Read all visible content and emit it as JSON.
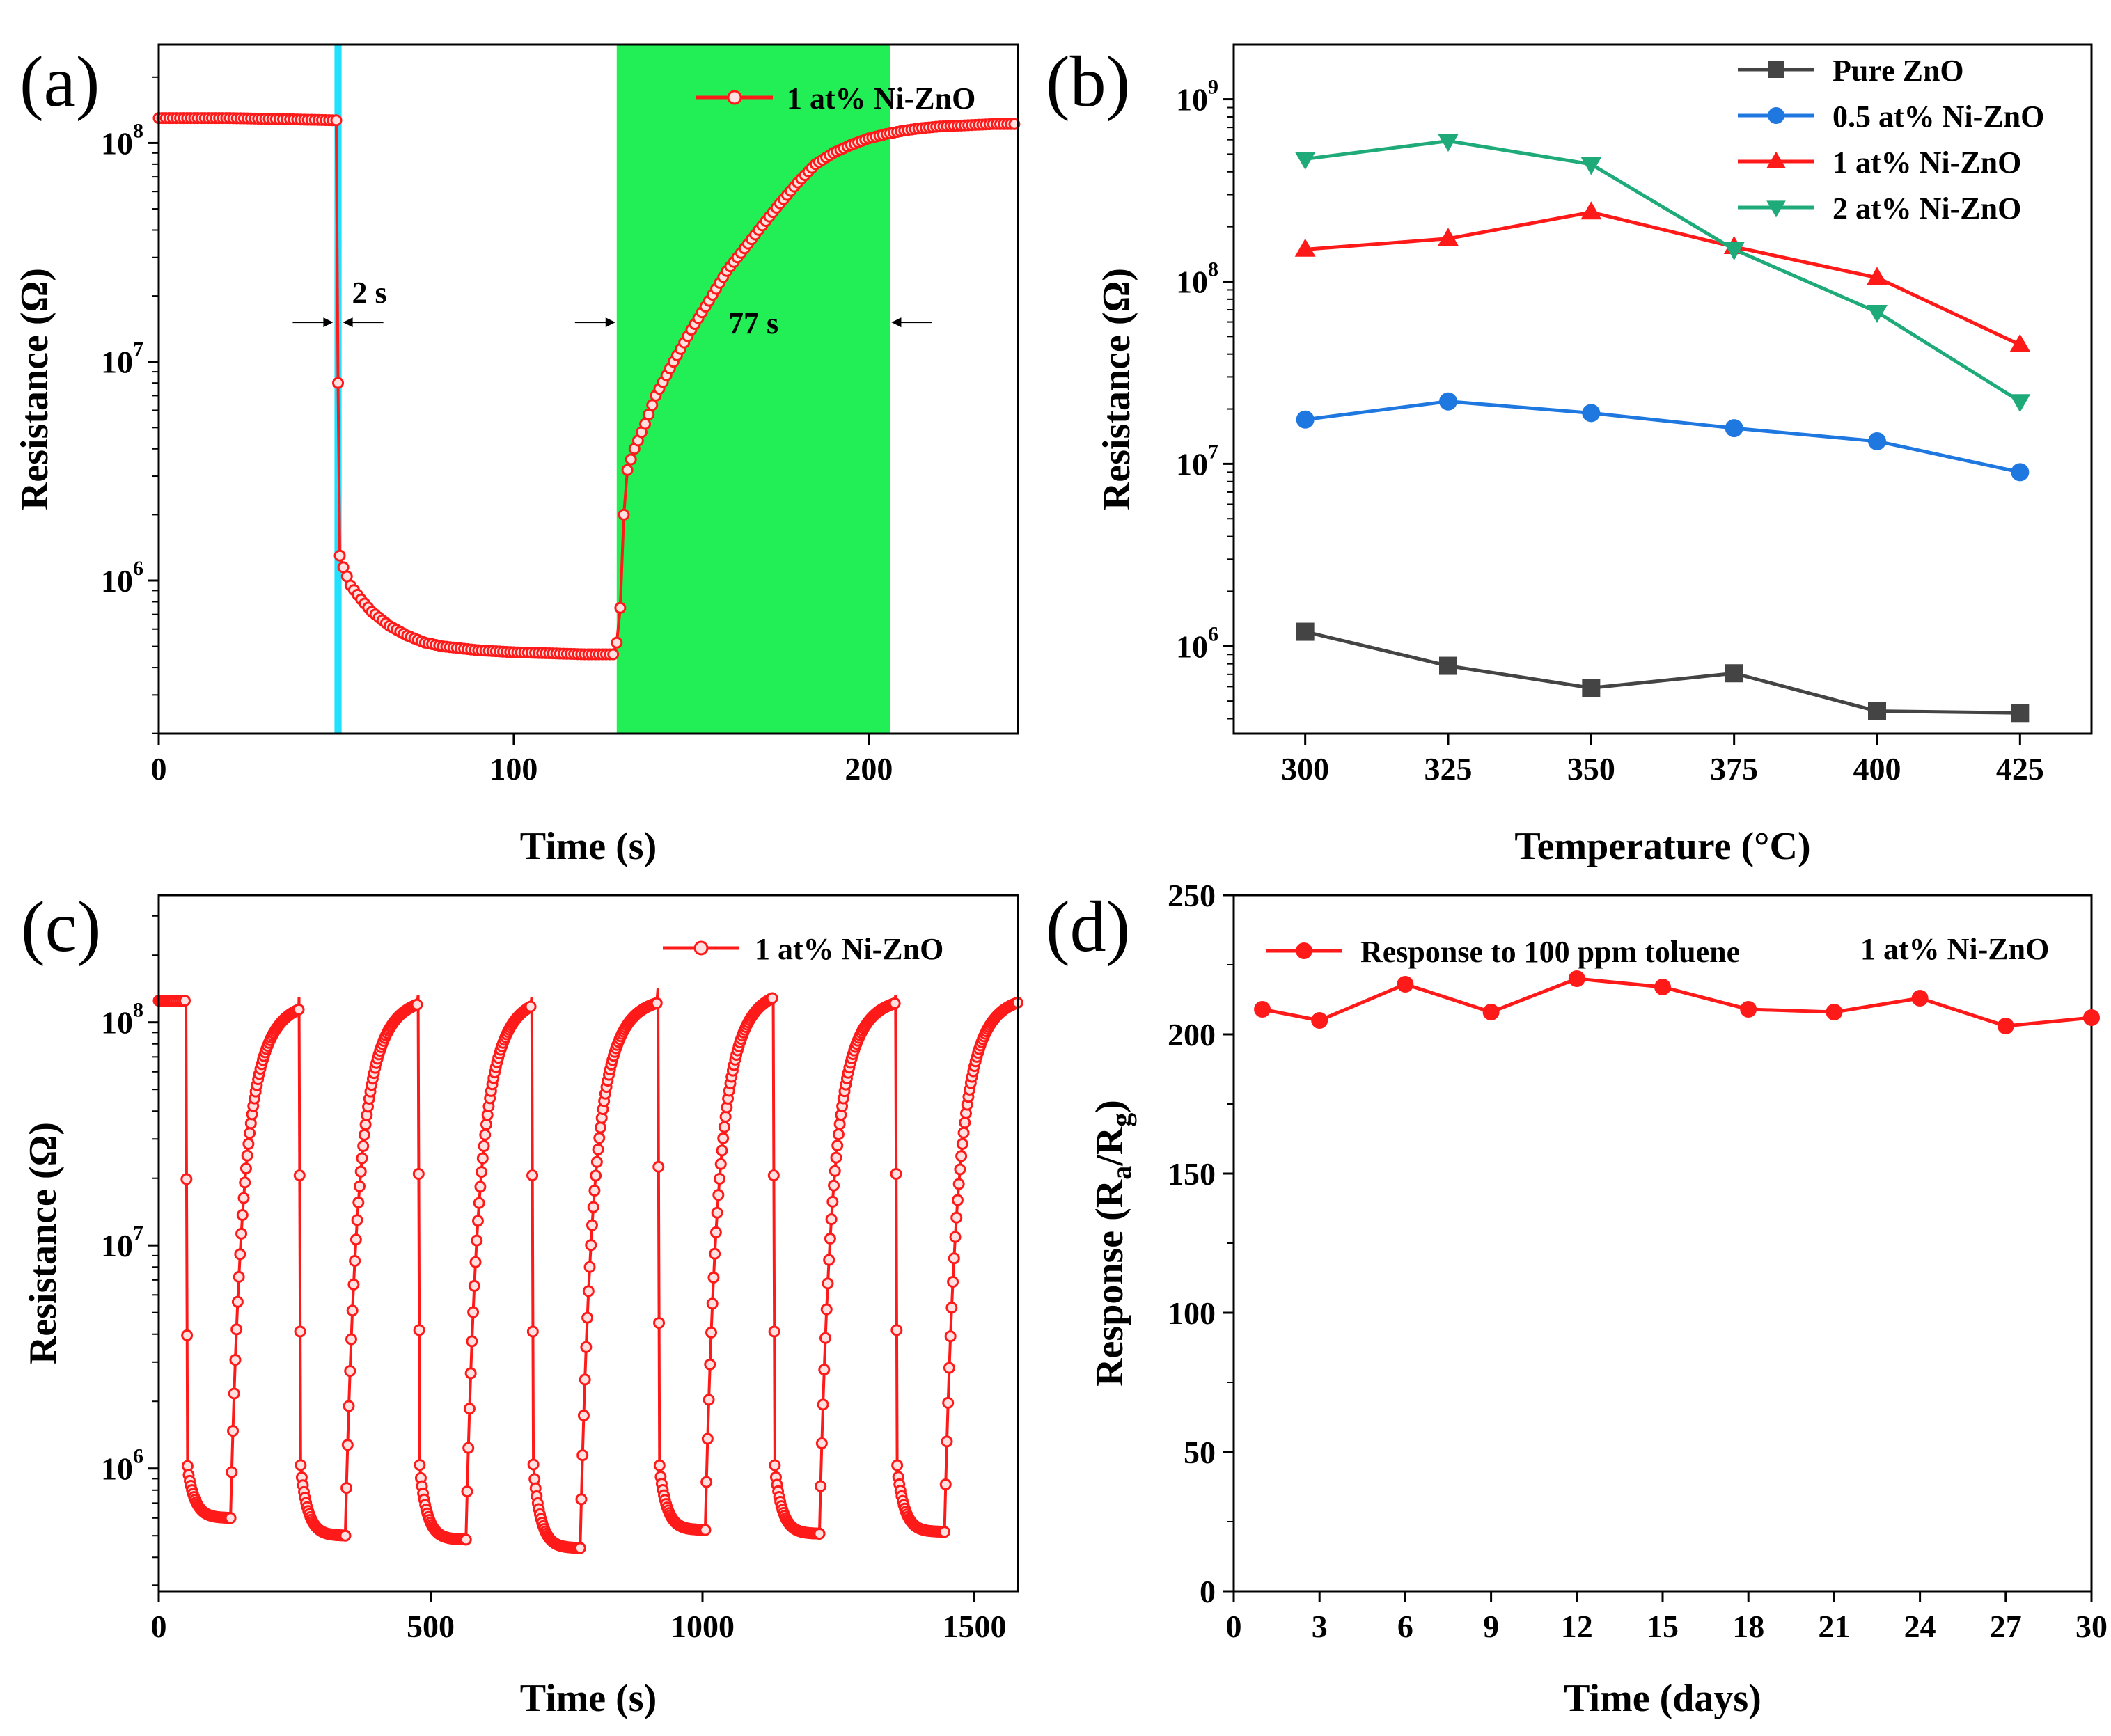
{
  "colors": {
    "red": "#ff1a1a",
    "black_series": "#444444",
    "blue": "#1f77e0",
    "green": "#1faa7a",
    "cyan": "#22e0ff",
    "lime": "#22ee55"
  },
  "chart_data": [
    {
      "id": "a",
      "panel_label": "(a)",
      "type": "line",
      "yscale": "log",
      "xlabel": "Time (s)",
      "ylabel": "Resistance (Ω)",
      "xlim": [
        0,
        242
      ],
      "ylim_log10": [
        5.3,
        8.45
      ],
      "xticks": [
        0,
        100,
        200
      ],
      "xtick_labels": [
        "0",
        "100",
        "200"
      ],
      "yticks_exp": [
        6,
        7,
        8
      ],
      "ytick_base": "10",
      "legend": [
        "1 at% Ni-ZnO"
      ],
      "series": [
        {
          "name": "1 at% Ni-ZnO",
          "color": "#ff1a1a",
          "x": [
            0,
            20,
            40,
            50,
            50.5,
            51,
            52,
            54,
            57,
            60,
            65,
            70,
            75,
            80,
            90,
            100,
            110,
            120,
            128,
            129,
            130,
            131,
            132,
            134,
            137,
            140,
            145,
            150,
            155,
            160,
            165,
            170,
            175,
            180,
            185,
            190,
            195,
            200,
            205,
            210,
            215,
            220,
            225,
            230,
            235,
            242
          ],
          "y": [
            130000000.0,
            130000000.0,
            128000000.0,
            127000000.0,
            8000000.0,
            1300000.0,
            1150000.0,
            950000.0,
            820000.0,
            720000.0,
            620000.0,
            560000.0,
            520000.0,
            500000.0,
            480000.0,
            470000.0,
            465000.0,
            460000.0,
            460000.0,
            520000.0,
            750000.0,
            2000000.0,
            3200000.0,
            4000000.0,
            5200000.0,
            7000000.0,
            10000000.0,
            14000000.0,
            19000000.0,
            26000000.0,
            33000000.0,
            42000000.0,
            53000000.0,
            66000000.0,
            80000000.0,
            90000000.0,
            98000000.0,
            105000000.0,
            110000000.0,
            114000000.0,
            117000000.0,
            119000000.0,
            120000000.0,
            121000000.0,
            122000000.0,
            122000000.0
          ]
        }
      ],
      "regions": [
        {
          "name": "response",
          "x0": 49.5,
          "x1": 51.5,
          "color": "#22e0ff"
        },
        {
          "name": "recovery",
          "x0": 129,
          "x1": 206,
          "color": "#22ee55"
        }
      ],
      "annotations": [
        {
          "text": "2 s",
          "x_from": 49.5,
          "x_to": 51.5,
          "log_y": 7.18
        },
        {
          "text": "77 s",
          "x_from": 129,
          "x_to": 206,
          "log_y": 7.18
        }
      ]
    },
    {
      "id": "b",
      "panel_label": "(b)",
      "type": "line",
      "yscale": "log",
      "xlabel": "Temperature (°C)",
      "ylabel": "Resistance (Ω)",
      "xlim": [
        287.5,
        437.5
      ],
      "ylim_log10": [
        5.52,
        9.3
      ],
      "xticks": [
        300,
        325,
        350,
        375,
        400,
        425
      ],
      "xtick_labels": [
        "300",
        "325",
        "350",
        "375",
        "400",
        "425"
      ],
      "yticks_exp": [
        6,
        7,
        8,
        9
      ],
      "ytick_base": "10",
      "categories": [
        300,
        325,
        350,
        375,
        400,
        425
      ],
      "legend": [
        "Pure ZnO",
        "0.5 at% Ni-ZnO",
        "1 at% Ni-ZnO",
        "2 at% Ni-ZnO"
      ],
      "series": [
        {
          "name": "Pure ZnO",
          "marker": "square",
          "color": "#444444",
          "values": [
            1200000.0,
            780000.0,
            590000.0,
            710000.0,
            440000.0,
            430000.0
          ]
        },
        {
          "name": "0.5 at% Ni-ZnO",
          "marker": "circle",
          "color": "#1f77e0",
          "values": [
            17500000.0,
            22000000.0,
            19000000.0,
            15700000.0,
            13300000.0,
            9000000.0
          ]
        },
        {
          "name": "1 at% Ni-ZnO",
          "marker": "triangle-up",
          "color": "#ff1a1a",
          "values": [
            150000000.0,
            172000000.0,
            240000000.0,
            155000000.0,
            105000000.0,
            45000000.0
          ]
        },
        {
          "name": "2 at% Ni-ZnO",
          "marker": "triangle-down",
          "color": "#1faa7a",
          "values": [
            470000000.0,
            590000000.0,
            440000000.0,
            150000000.0,
            68000000.0,
            22000000.0
          ]
        }
      ]
    },
    {
      "id": "c",
      "panel_label": "(c)",
      "type": "line",
      "yscale": "log",
      "xlabel": "Time (s)",
      "ylabel": "Resistance (Ω)",
      "xlim": [
        0,
        1580
      ],
      "ylim_log10": [
        5.45,
        8.57
      ],
      "xticks": [
        0,
        500,
        1000,
        1500
      ],
      "xtick_labels": [
        "0",
        "500",
        "1000",
        "1500"
      ],
      "yticks_exp": [
        6,
        7,
        8
      ],
      "ytick_base": "10",
      "legend": [
        "1 at% Ni-ZnO"
      ],
      "series": [
        {
          "name": "1 at% Ni-ZnO",
          "color": "#ff1a1a",
          "cycles": [
            {
              "start": 0,
              "drop": 50,
              "recover": 132,
              "end": 258,
              "r_high": 125000000.0,
              "r_low": 600000.0
            },
            {
              "start": 258,
              "drop": 258,
              "recover": 343,
              "end": 477,
              "r_high": 130000000.0,
              "r_low": 500000.0
            },
            {
              "start": 477,
              "drop": 477,
              "recover": 565,
              "end": 686,
              "r_high": 132000000.0,
              "r_low": 480000.0
            },
            {
              "start": 686,
              "drop": 686,
              "recover": 775,
              "end": 918,
              "r_high": 130000000.0,
              "r_low": 440000.0
            },
            {
              "start": 918,
              "drop": 918,
              "recover": 1005,
              "end": 1130,
              "r_high": 142000000.0,
              "r_low": 530000.0
            },
            {
              "start": 1130,
              "drop": 1130,
              "recover": 1215,
              "end": 1355,
              "r_high": 130000000.0,
              "r_low": 510000.0
            },
            {
              "start": 1355,
              "drop": 1355,
              "recover": 1445,
              "end": 1580,
              "r_high": 132000000.0,
              "r_low": 520000.0
            }
          ]
        }
      ]
    },
    {
      "id": "d",
      "panel_label": "(d)",
      "type": "line",
      "yscale": "linear",
      "xlabel": "Time (days)",
      "ylabel": "Response (Ra/Rg)",
      "ylabel_parts": {
        "main": "Response (R",
        "sub1": "a",
        "mid": "/R",
        "sub2": "g",
        "end": ")"
      },
      "xlim": [
        0,
        30
      ],
      "ylim": [
        0,
        250
      ],
      "xticks": [
        0,
        3,
        6,
        9,
        12,
        15,
        18,
        21,
        24,
        27,
        30
      ],
      "xtick_labels": [
        "0",
        "3",
        "6",
        "9",
        "12",
        "15",
        "18",
        "21",
        "24",
        "27",
        "30"
      ],
      "yticks": [
        0,
        50,
        100,
        150,
        200,
        250
      ],
      "ytick_labels": [
        "0",
        "50",
        "100",
        "150",
        "200",
        "250"
      ],
      "legend": [
        "Response to 100 ppm toluene"
      ],
      "annotation": "1 at% Ni-ZnO",
      "series": [
        {
          "name": "Response to 100 ppm toluene",
          "color": "#ff1a1a",
          "x": [
            1,
            3,
            6,
            9,
            12,
            15,
            18,
            21,
            24,
            27,
            30
          ],
          "y": [
            209,
            205,
            218,
            208,
            220,
            217,
            209,
            208,
            213,
            203,
            206
          ]
        }
      ]
    }
  ]
}
